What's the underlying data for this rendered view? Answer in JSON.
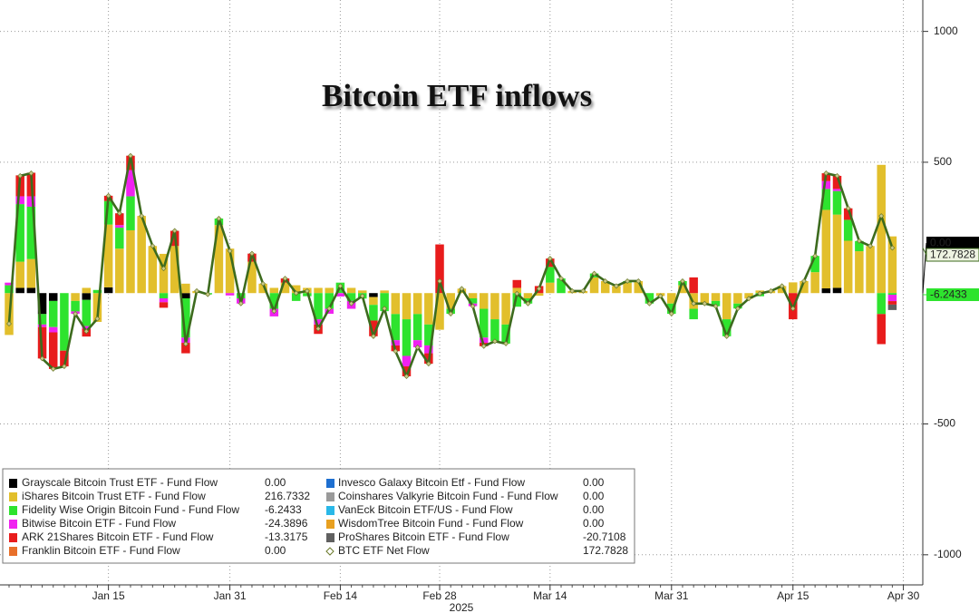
{
  "chart_data": {
    "type": "bar",
    "title": "Bitcoin ETF inflows",
    "xlabel": "2025",
    "categories": [
      null,
      null,
      null,
      null,
      null,
      null,
      null,
      null,
      null,
      "Jan 15",
      null,
      null,
      null,
      null,
      null,
      null,
      null,
      null,
      null,
      null,
      "Jan 31",
      null,
      null,
      null,
      null,
      null,
      null,
      null,
      null,
      null,
      "Feb 14",
      null,
      null,
      null,
      null,
      null,
      null,
      null,
      null,
      "Feb 28",
      null,
      null,
      null,
      null,
      null,
      null,
      null,
      null,
      null,
      "Mar 14",
      null,
      null,
      null,
      null,
      null,
      null,
      null,
      null,
      null,
      null,
      "Mar 31",
      null,
      null,
      null,
      null,
      null,
      null,
      null,
      null,
      null,
      null,
      "Apr 15",
      null,
      null,
      null,
      null,
      null,
      null,
      null,
      null,
      null,
      "Apr 30"
    ],
    "ylim": [
      -1115,
      1120
    ],
    "yticks": [
      -1000,
      -500,
      500,
      1000
    ],
    "grid": true,
    "legend": "bottom-left",
    "series": [
      {
        "name": "Grayscale Bitcoin Trust ETF - Fund Flow",
        "legend_value": "0.00",
        "color": "#000000",
        "values": [
          0,
          20,
          20,
          -80,
          -30,
          0,
          0,
          -26,
          0,
          22,
          0,
          0,
          0,
          0,
          0,
          0,
          -20,
          0,
          0,
          0,
          0,
          0,
          0,
          0,
          0,
          0,
          0,
          0,
          0,
          0,
          0,
          0,
          0,
          -15,
          0,
          0,
          0,
          0,
          0,
          0,
          0,
          0,
          0,
          0,
          0,
          0,
          0,
          0,
          0,
          0,
          0,
          0,
          0,
          0,
          0,
          0,
          0,
          0,
          0,
          0,
          0,
          0,
          0,
          0,
          0,
          0,
          0,
          0,
          0,
          0,
          0,
          0,
          0,
          0,
          18,
          20,
          0,
          0,
          0,
          0,
          0,
          null
        ]
      },
      {
        "name": "iShares Bitcoin Trust ETF - Fund Flow",
        "legend_value": "216.7332",
        "color": "#e2bf2c",
        "values": [
          -160,
          100,
          110,
          0,
          0,
          0,
          -30,
          20,
          -110,
          240,
          170,
          240,
          295,
          180,
          150,
          180,
          36,
          8,
          0,
          260,
          170,
          0,
          120,
          36,
          20,
          40,
          30,
          20,
          20,
          20,
          0,
          20,
          10,
          -30,
          10,
          -80,
          -100,
          -80,
          -120,
          -140,
          -60,
          17,
          -20,
          -60,
          -100,
          -120,
          20,
          -20,
          -10,
          40,
          0,
          8,
          8,
          60,
          46,
          27,
          40,
          46,
          0,
          -11,
          -40,
          30,
          -60,
          -40,
          -30,
          -100,
          -40,
          -21,
          10,
          8,
          27,
          41,
          46,
          80,
          300,
          280,
          200,
          160,
          180,
          490,
          216.7332,
          null
        ]
      },
      {
        "name": "Fidelity Wise Origin Bitcoin Fund - Fund Flow",
        "legend_value": "-6.2433",
        "color": "#2ee32e",
        "values": [
          30,
          220,
          200,
          -40,
          -100,
          -220,
          -40,
          -100,
          12,
          90,
          80,
          130,
          0,
          0,
          -20,
          0,
          -150,
          0,
          -5,
          25,
          0,
          -20,
          0,
          0,
          -60,
          0,
          -30,
          -12,
          -100,
          -60,
          40,
          -30,
          -21,
          -60,
          -69,
          -100,
          -140,
          -100,
          -80,
          0,
          -19,
          0,
          -20,
          -110,
          -84,
          -73,
          -52,
          -20,
          0,
          60,
          56,
          0,
          0,
          15,
          0,
          0,
          6,
          0,
          -40,
          0,
          -39,
          16,
          -40,
          0,
          -20,
          -65,
          -19,
          0,
          -12,
          0,
          0,
          0,
          0,
          62,
          80,
          90,
          80,
          39,
          0,
          -80,
          -6.2433,
          null
        ]
      },
      {
        "name": "Bitwise Bitcoin ETF - Fund Flow",
        "legend_value": "-24.3896",
        "color": "#f022f0",
        "values": [
          10,
          30,
          40,
          -10,
          -20,
          0,
          -9,
          -10,
          0,
          0,
          10,
          100,
          0,
          0,
          -15,
          0,
          -20,
          0,
          0,
          0,
          -9,
          -20,
          0,
          0,
          -29,
          0,
          0,
          0,
          -20,
          -19,
          -13,
          -30,
          0,
          0,
          0,
          -20,
          -40,
          -27,
          -30,
          0,
          0,
          0,
          -10,
          -20,
          0,
          0,
          0,
          0,
          0,
          0,
          0,
          0,
          0,
          0,
          0,
          0,
          0,
          0,
          0,
          0,
          0,
          0,
          0,
          0,
          0,
          0,
          0,
          0,
          0,
          0,
          0,
          0,
          0,
          0,
          30,
          8,
          0,
          0,
          0,
          0,
          -24.3896,
          null
        ]
      },
      {
        "name": "ARK 21Shares Bitcoin ETF - Fund Flow",
        "legend_value": "-13.3175",
        "color": "#e81c1c",
        "values": [
          0,
          80,
          90,
          -120,
          -140,
          -60,
          0,
          -30,
          0,
          20,
          45,
          55,
          0,
          0,
          -21,
          58,
          -40,
          0,
          0,
          0,
          0,
          0,
          31,
          0,
          0,
          16,
          0,
          0,
          -36,
          0,
          0,
          0,
          0,
          -60,
          0,
          -22,
          -38,
          0,
          -40,
          186,
          0,
          0,
          0,
          -13,
          0,
          0,
          30,
          0,
          27,
          32,
          0,
          0,
          0,
          0,
          0,
          0,
          0,
          0,
          0,
          0,
          0,
          0,
          60,
          0,
          0,
          0,
          0,
          0,
          0,
          0,
          0,
          -100,
          0,
          0,
          30,
          50,
          44,
          0,
          0,
          -115,
          -13.3175,
          null
        ]
      },
      {
        "name": "Franklin Bitcoin ETF - Fund Flow",
        "legend_value": "0.00",
        "color": "#e8702a",
        "values": [
          0,
          0,
          0,
          0,
          0,
          0,
          0,
          0,
          0,
          0,
          0,
          0,
          0,
          0,
          0,
          0,
          0,
          0,
          0,
          0,
          0,
          0,
          0,
          0,
          0,
          0,
          0,
          0,
          0,
          0,
          0,
          0,
          0,
          0,
          0,
          0,
          0,
          0,
          0,
          0,
          0,
          0,
          0,
          0,
          0,
          0,
          0,
          0,
          0,
          0,
          0,
          0,
          0,
          0,
          0,
          0,
          0,
          0,
          0,
          0,
          0,
          0,
          0,
          0,
          0,
          0,
          0,
          0,
          0,
          0,
          0,
          0,
          0,
          0,
          0,
          0,
          0,
          0,
          0,
          0,
          0,
          null
        ]
      },
      {
        "name": "Invesco Galaxy Bitcoin Etf - Fund Flow",
        "legend_value": "0.00",
        "color": "#1e6fd0",
        "values": [
          0,
          0,
          0,
          0,
          0,
          0,
          0,
          0,
          0,
          0,
          0,
          0,
          0,
          0,
          0,
          0,
          0,
          0,
          0,
          0,
          0,
          0,
          0,
          0,
          0,
          0,
          0,
          0,
          0,
          0,
          0,
          0,
          0,
          0,
          0,
          0,
          0,
          0,
          0,
          0,
          0,
          0,
          0,
          0,
          0,
          0,
          0,
          0,
          0,
          0,
          0,
          0,
          0,
          0,
          0,
          0,
          0,
          0,
          0,
          0,
          0,
          0,
          0,
          0,
          0,
          0,
          0,
          0,
          0,
          0,
          0,
          0,
          0,
          0,
          0,
          0,
          0,
          0,
          0,
          0,
          0,
          null
        ]
      },
      {
        "name": "Coinshares Valkyrie Bitcoin Fund - Fund Flow",
        "legend_value": "0.00",
        "color": "#9a9a9a",
        "values": [
          0,
          0,
          0,
          0,
          0,
          0,
          0,
          0,
          0,
          0,
          0,
          0,
          0,
          0,
          0,
          0,
          0,
          0,
          0,
          0,
          0,
          0,
          0,
          0,
          0,
          0,
          0,
          0,
          0,
          0,
          0,
          0,
          0,
          0,
          0,
          0,
          0,
          0,
          0,
          0,
          0,
          0,
          0,
          0,
          0,
          0,
          0,
          0,
          0,
          0,
          0,
          0,
          0,
          0,
          0,
          0,
          0,
          0,
          0,
          0,
          0,
          0,
          0,
          0,
          0,
          0,
          0,
          0,
          0,
          0,
          0,
          0,
          0,
          0,
          0,
          0,
          0,
          0,
          0,
          0,
          0,
          null
        ]
      },
      {
        "name": "VanEck Bitcoin ETF/US - Fund Flow",
        "legend_value": "0.00",
        "color": "#2ab8e8",
        "values": [
          0,
          0,
          0,
          0,
          0,
          0,
          0,
          0,
          0,
          0,
          0,
          0,
          0,
          0,
          0,
          0,
          0,
          0,
          0,
          0,
          0,
          0,
          0,
          0,
          0,
          0,
          0,
          0,
          0,
          0,
          0,
          0,
          0,
          0,
          0,
          0,
          0,
          0,
          0,
          0,
          0,
          0,
          0,
          0,
          0,
          0,
          0,
          0,
          0,
          0,
          0,
          0,
          0,
          0,
          0,
          0,
          0,
          0,
          0,
          0,
          0,
          0,
          0,
          0,
          0,
          0,
          0,
          0,
          0,
          0,
          0,
          0,
          0,
          0,
          0,
          0,
          0,
          0,
          0,
          0,
          0,
          null
        ]
      },
      {
        "name": "WisdomTree Bitcoin Fund - Fund Flow",
        "legend_value": "0.00",
        "color": "#e8a020",
        "values": [
          0,
          0,
          0,
          0,
          0,
          0,
          0,
          0,
          0,
          0,
          0,
          0,
          0,
          0,
          0,
          0,
          0,
          0,
          0,
          0,
          0,
          0,
          0,
          0,
          0,
          0,
          0,
          0,
          0,
          0,
          0,
          0,
          0,
          0,
          0,
          0,
          0,
          0,
          0,
          0,
          0,
          0,
          0,
          0,
          0,
          0,
          0,
          0,
          0,
          0,
          0,
          0,
          0,
          0,
          0,
          0,
          0,
          0,
          0,
          0,
          0,
          0,
          0,
          0,
          0,
          0,
          0,
          0,
          0,
          0,
          0,
          0,
          0,
          0,
          0,
          0,
          0,
          0,
          0,
          0,
          0,
          null
        ]
      },
      {
        "name": "ProShares Bitcoin ETF - Fund Flow",
        "legend_value": "-20.7108",
        "color": "#606060",
        "values": [
          0,
          0,
          0,
          0,
          0,
          0,
          0,
          0,
          0,
          0,
          0,
          0,
          0,
          0,
          0,
          0,
          0,
          0,
          0,
          0,
          0,
          0,
          0,
          0,
          0,
          0,
          0,
          0,
          0,
          0,
          0,
          0,
          0,
          0,
          0,
          0,
          0,
          0,
          0,
          0,
          0,
          0,
          0,
          0,
          0,
          0,
          0,
          0,
          0,
          0,
          0,
          0,
          0,
          0,
          0,
          0,
          0,
          0,
          0,
          0,
          0,
          0,
          0,
          0,
          0,
          0,
          0,
          0,
          0,
          0,
          0,
          0,
          0,
          0,
          0,
          0,
          0,
          0,
          0,
          0,
          -20.7108,
          null
        ]
      },
      {
        "name": "BTC ETF Net Flow",
        "legend_value": "172.7828",
        "type": "line",
        "color": "#3d6b1e",
        "values": [
          -117,
          448,
          458,
          -250,
          -290,
          -280,
          -79,
          -146,
          -98,
          372,
          305,
          525,
          295,
          180,
          94,
          238,
          -194,
          8,
          -5,
          285,
          161,
          -40,
          151,
          36,
          -69,
          56,
          0,
          8,
          -136,
          -59,
          27,
          -40,
          -11,
          -165,
          -59,
          -222,
          -318,
          -207,
          -270,
          46,
          -79,
          17,
          -50,
          -203,
          -184,
          -193,
          -2,
          -40,
          17,
          132,
          56,
          8,
          8,
          75,
          46,
          27,
          46,
          46,
          -40,
          -11,
          -79,
          46,
          -40,
          -40,
          -50,
          -165,
          -59,
          -21,
          -2,
          8,
          27,
          -59,
          46,
          142,
          458,
          448,
          324,
          199,
          180,
          295,
          172.7828,
          null
        ]
      }
    ]
  }
}
